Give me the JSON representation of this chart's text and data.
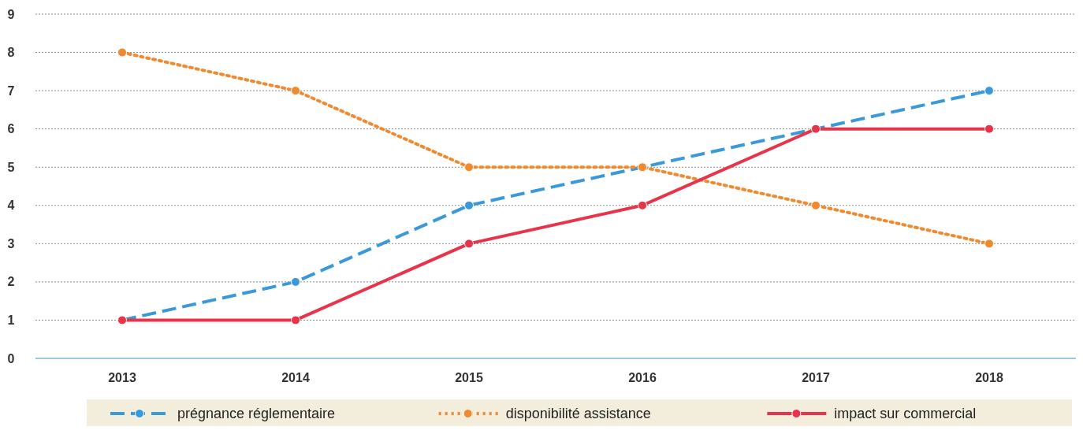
{
  "chart_data": {
    "type": "line",
    "categories": [
      "2013",
      "2014",
      "2015",
      "2016",
      "2017",
      "2018"
    ],
    "series": [
      {
        "name": "prégnance réglementaire",
        "color": "#3a9ad9",
        "values": [
          1,
          2,
          4,
          5,
          6,
          7
        ],
        "line_style": "dashed",
        "marker": "circle"
      },
      {
        "name": "disponibilité assistance",
        "color": "#f08a30",
        "values": [
          8,
          7,
          5,
          5,
          4,
          3
        ],
        "line_style": "dotted",
        "marker": "circle"
      },
      {
        "name": "impact sur commercial",
        "color": "#e8344a",
        "values": [
          1,
          1,
          3,
          4,
          6,
          6
        ],
        "line_style": "solid",
        "marker": "circle"
      }
    ],
    "ylim": [
      0,
      9
    ],
    "yticks": [
      0,
      1,
      2,
      3,
      4,
      5,
      6,
      7,
      8,
      9
    ],
    "grid": "y",
    "legend": "bottom"
  }
}
